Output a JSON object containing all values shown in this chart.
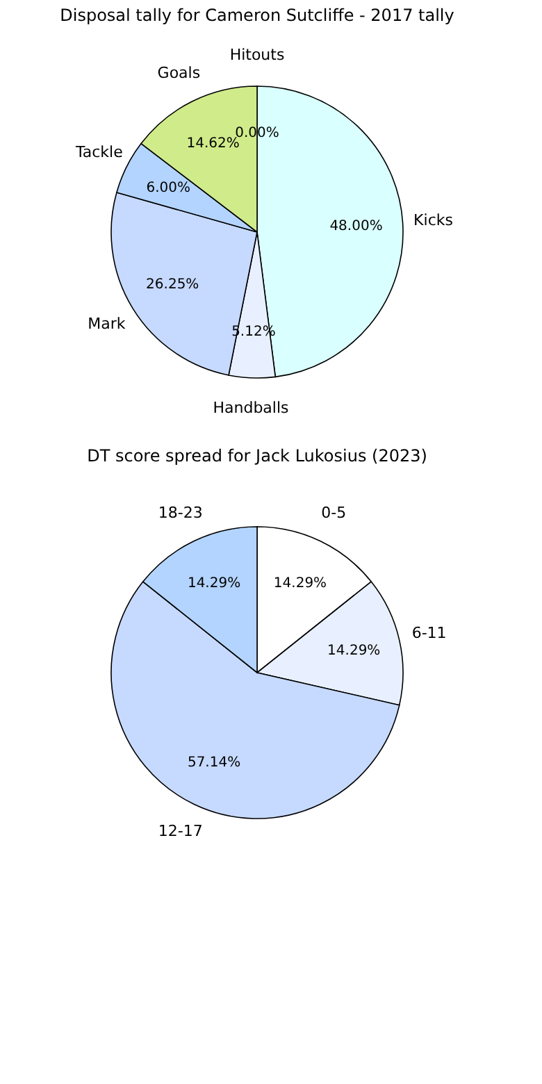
{
  "chart_data": [
    {
      "type": "pie",
      "title": "Disposal tally for Cameron Sutcliffe - 2017 tally",
      "categories": [
        "Hitouts",
        "Kicks",
        "Handballs",
        "Mark",
        "Tackle",
        "Goals"
      ],
      "values": [
        0.0,
        48.0,
        5.12,
        26.25,
        6.0,
        14.62
      ],
      "colors": [
        "#c6d9ff",
        "#d9ffff",
        "#e8f0ff",
        "#c6d9ff",
        "#b3d4ff",
        "#d0eb8a"
      ],
      "value_labels": [
        "0.00%",
        "48.00%",
        "5.12%",
        "26.25%",
        "6.00%",
        "14.62%"
      ]
    },
    {
      "type": "pie",
      "title": "DT score spread for Jack Lukosius (2023)",
      "categories": [
        "0-5",
        "6-11",
        "12-17",
        "18-23"
      ],
      "values": [
        14.29,
        14.29,
        57.14,
        14.29
      ],
      "colors": [
        "#ffffff",
        "#e8f0ff",
        "#c6d9ff",
        "#b3d4ff"
      ],
      "value_labels": [
        "14.29%",
        "14.29%",
        "57.14%",
        "14.29%"
      ]
    }
  ]
}
